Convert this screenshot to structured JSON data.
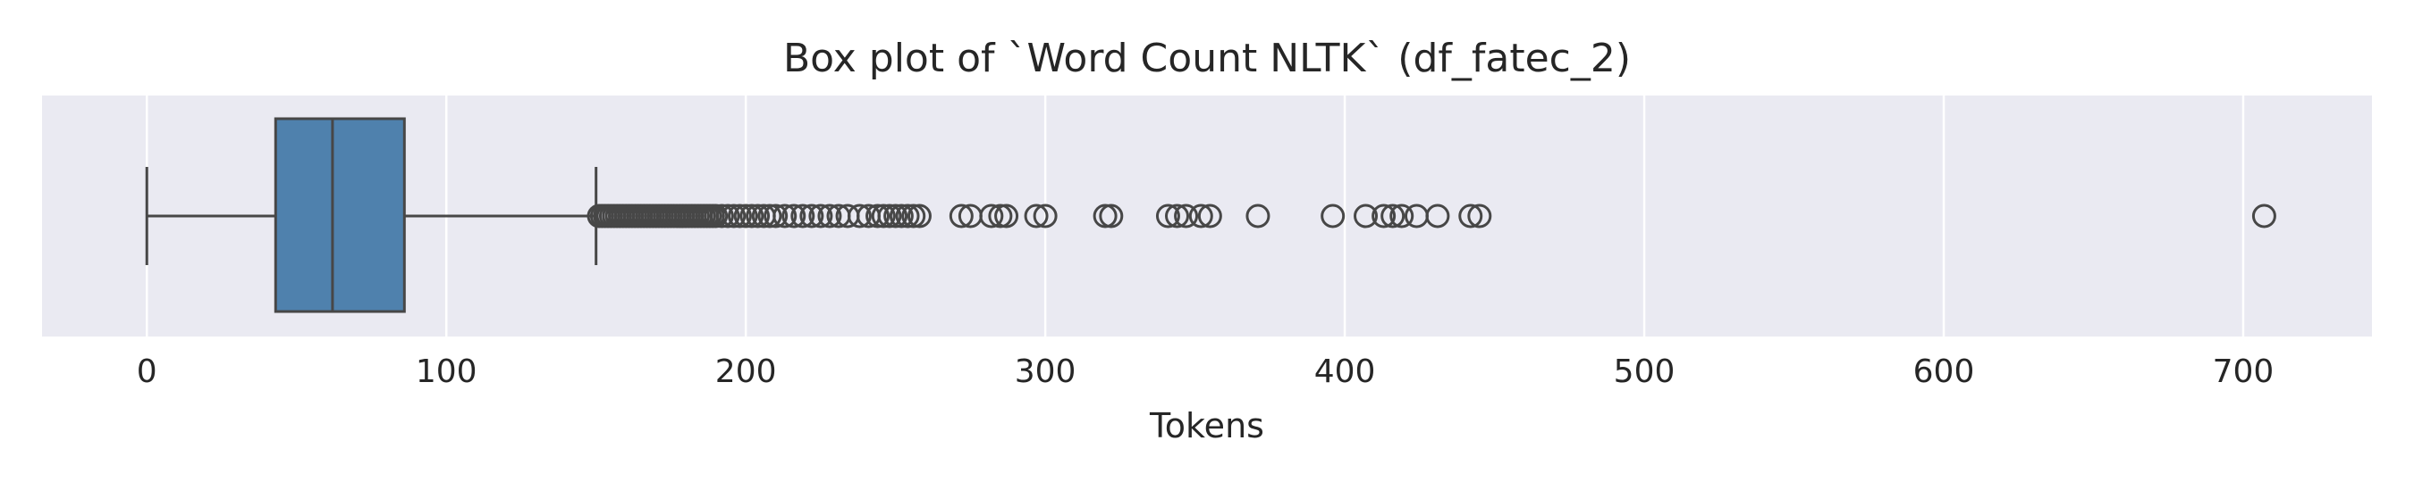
{
  "chart_data": {
    "type": "box",
    "title": "Box plot of `Word Count NLTK` (df_fatec_2)",
    "xlabel": "Tokens",
    "ylabel": "",
    "orientation": "horizontal",
    "xlim": [
      -35,
      743
    ],
    "xticks": [
      0,
      100,
      200,
      300,
      400,
      500,
      600,
      700
    ],
    "grid": true,
    "colors": {
      "box_fill": "#4f81ad",
      "line": "#474747",
      "plot_bg": "#eaeaf2",
      "grid": "#ffffff"
    },
    "box": {
      "whisker_low": 0,
      "q1": 43,
      "median": 62,
      "q3": 86,
      "whisker_high": 150
    },
    "outliers": [
      151,
      152,
      153,
      154,
      155,
      156,
      157,
      158,
      159,
      160,
      161,
      162,
      163,
      164,
      165,
      166,
      167,
      168,
      169,
      170,
      171,
      172,
      173,
      174,
      175,
      176,
      177,
      178,
      179,
      180,
      181,
      182,
      183,
      184,
      185,
      186,
      187,
      188,
      189,
      190,
      192,
      194,
      196,
      198,
      200,
      202,
      204,
      206,
      208,
      210,
      213,
      216,
      219,
      222,
      225,
      228,
      231,
      234,
      238,
      241,
      244,
      246,
      248,
      250,
      252,
      254,
      256,
      258,
      272,
      275,
      282,
      285,
      287,
      297,
      300,
      320,
      322,
      341,
      344,
      347,
      352,
      355,
      371,
      396,
      407,
      413,
      416,
      419,
      424,
      431,
      442,
      445,
      707
    ]
  }
}
